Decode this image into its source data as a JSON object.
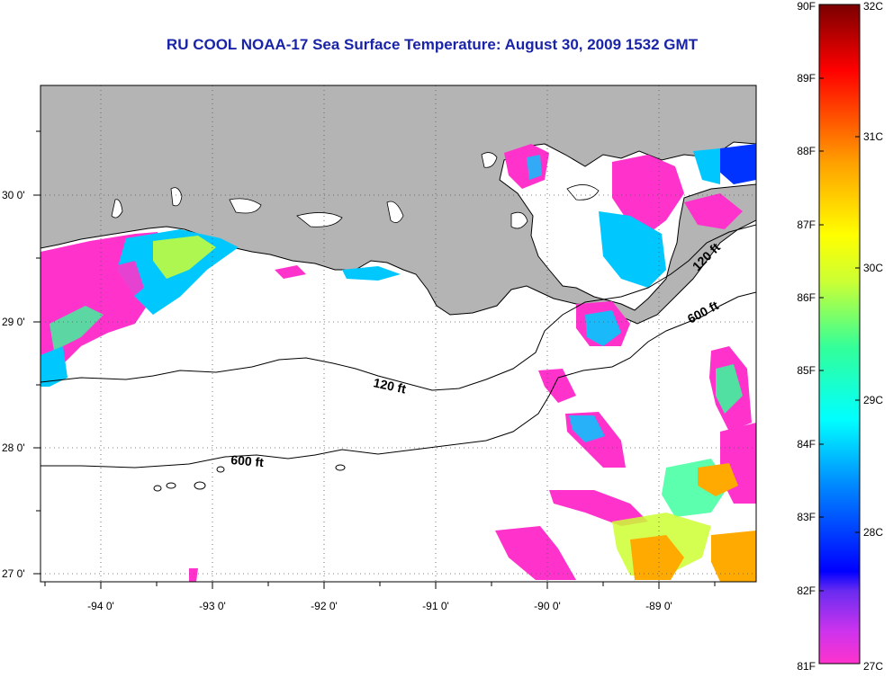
{
  "title": "RU COOL  NOAA-17  Sea Surface Temperature:  August 30, 2009 1532 GMT",
  "map": {
    "lon_ticks": [
      "-94 0'",
      "-93 0'",
      "-92 0'",
      "-91 0'",
      "-90 0'",
      "-89 0'"
    ],
    "lat_ticks": [
      "30 0'",
      "29 0'",
      "28 0'",
      "27 0'"
    ],
    "contours": [
      "120 ft",
      "600 ft",
      "120 ft",
      "600 ft"
    ],
    "colors": {
      "land": "#b4b4b4",
      "ocean_nodata": "#ffffff",
      "grid": "#555555"
    }
  },
  "colorbar": {
    "fahrenheit": [
      "90F",
      "89F",
      "88F",
      "87F",
      "86F",
      "85F",
      "84F",
      "83F",
      "82F",
      "81F"
    ],
    "celsius": [
      "32C",
      "31C",
      "30C",
      "29C",
      "28C",
      "27C"
    ],
    "colors": [
      "#ff33cc",
      "#8a2be2",
      "#0000ff",
      "#0099ff",
      "#00ffff",
      "#33ff99",
      "#ccff33",
      "#ffff00",
      "#ffaa00",
      "#ff5500",
      "#ff0000",
      "#b30000",
      "#7a0000"
    ]
  }
}
